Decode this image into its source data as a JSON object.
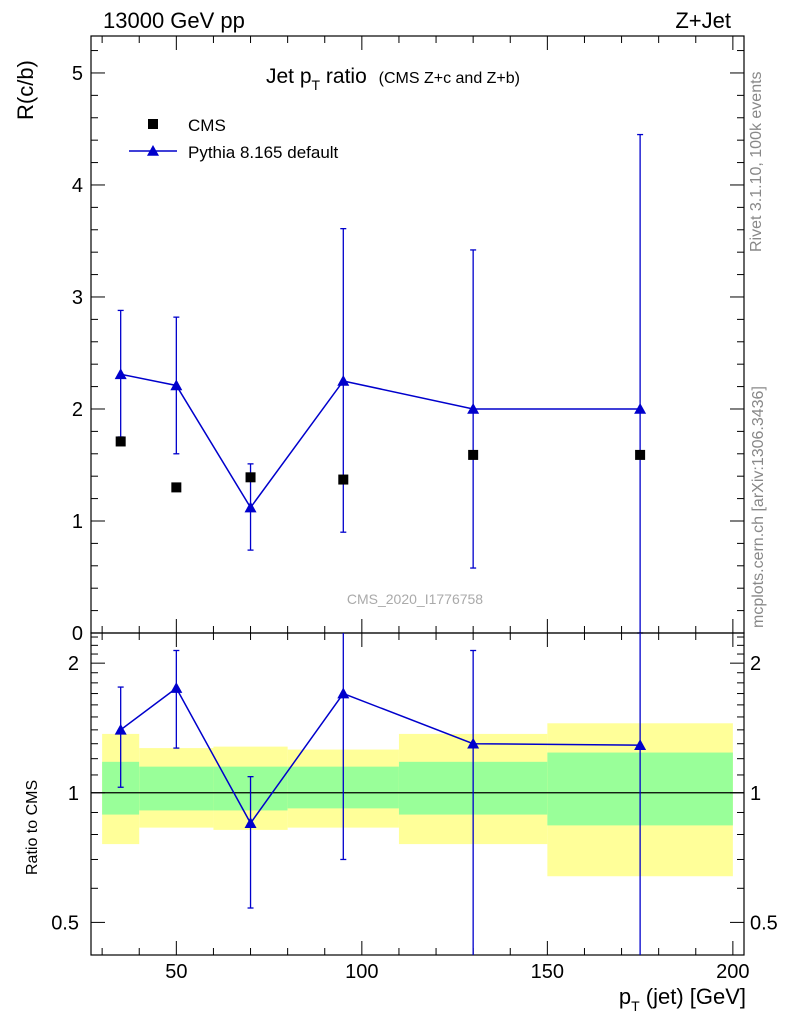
{
  "header": {
    "left": "13000 GeV pp",
    "right": "Z+Jet"
  },
  "plot_title": {
    "main": "Jet p",
    "main_sub": "T",
    "main_tail": " ratio",
    "detail": "(CMS  Z+c and Z+b)"
  },
  "side_text": {
    "rivet": "Rivet 3.1.10,  100k events",
    "mcplots": "mcplots.cern.ch [arXiv:1306.3436]"
  },
  "watermark": "CMS_2020_I1776758",
  "colors": {
    "mc": "#0000cc",
    "data": "#000000",
    "band_outer": "#ffff99",
    "band_inner": "#99ff99",
    "side_text": "#888888"
  },
  "chart_data": [
    {
      "type": "scatter",
      "name": "main",
      "ylabel": "R(c/b)",
      "ylim": [
        0,
        5.33
      ],
      "yticks": [
        0,
        1,
        2,
        3,
        4,
        5
      ],
      "ytick_labels": [
        "0",
        "1",
        "2",
        "3",
        "4",
        "5"
      ],
      "xlim": [
        27,
        203
      ],
      "legend": {
        "position": "top-left",
        "entries": [
          {
            "name": "CMS",
            "marker": "square"
          },
          {
            "name": "Pythia 8.165 default",
            "marker": "triangle"
          }
        ]
      },
      "series": [
        {
          "name": "CMS",
          "x": [
            35,
            50,
            70,
            95,
            130,
            175
          ],
          "y": [
            1.71,
            1.3,
            1.39,
            1.37,
            1.59,
            1.59
          ]
        },
        {
          "name": "Pythia 8.165 default",
          "x": [
            35,
            50,
            70,
            95,
            130,
            175
          ],
          "y": [
            2.31,
            2.21,
            1.12,
            2.25,
            2.0,
            2.0
          ],
          "yerr_low": [
            1.75,
            1.6,
            0.74,
            0.9,
            0.58,
            0.0
          ],
          "yerr_high": [
            2.88,
            2.82,
            1.51,
            3.61,
            3.42,
            4.45
          ]
        }
      ]
    },
    {
      "type": "scatter",
      "name": "ratio",
      "ylabel": "Ratio to CMS",
      "xlabel": "p_T (jet) [GeV]",
      "xlabel_main": "p",
      "xlabel_sub": "T",
      "xlabel_tail": " (jet) [GeV]",
      "ylim": [
        0.42,
        2.35
      ],
      "ylog": true,
      "yticks": [
        0.5,
        1,
        2
      ],
      "ytick_labels": [
        "0.5",
        "1",
        "2"
      ],
      "xlim": [
        27,
        203
      ],
      "xticks": [
        50,
        100,
        150,
        200
      ],
      "xtick_labels": [
        "50",
        "100",
        "150",
        "200"
      ],
      "bands": [
        {
          "x0": 30,
          "x1": 40,
          "outer": [
            0.76,
            1.37
          ],
          "inner": [
            0.89,
            1.18
          ]
        },
        {
          "x0": 40,
          "x1": 60,
          "outer": [
            0.83,
            1.27
          ],
          "inner": [
            0.91,
            1.15
          ]
        },
        {
          "x0": 60,
          "x1": 80,
          "outer": [
            0.82,
            1.28
          ],
          "inner": [
            0.91,
            1.15
          ]
        },
        {
          "x0": 80,
          "x1": 110,
          "outer": [
            0.83,
            1.26
          ],
          "inner": [
            0.92,
            1.15
          ]
        },
        {
          "x0": 110,
          "x1": 150,
          "outer": [
            0.76,
            1.37
          ],
          "inner": [
            0.89,
            1.18
          ]
        },
        {
          "x0": 150,
          "x1": 200,
          "outer": [
            0.64,
            1.45
          ],
          "inner": [
            0.84,
            1.24
          ]
        }
      ],
      "series": [
        {
          "name": "Pythia 8.165 default / CMS",
          "x": [
            35,
            50,
            70,
            95,
            130,
            175
          ],
          "y": [
            1.4,
            1.75,
            0.85,
            1.7,
            1.3,
            1.29
          ],
          "yerr_low": [
            1.03,
            1.27,
            0.54,
            0.7,
            0.3,
            0.3
          ],
          "yerr_high": [
            1.76,
            2.14,
            1.09,
            2.4,
            2.14,
            2.4
          ]
        }
      ]
    }
  ]
}
